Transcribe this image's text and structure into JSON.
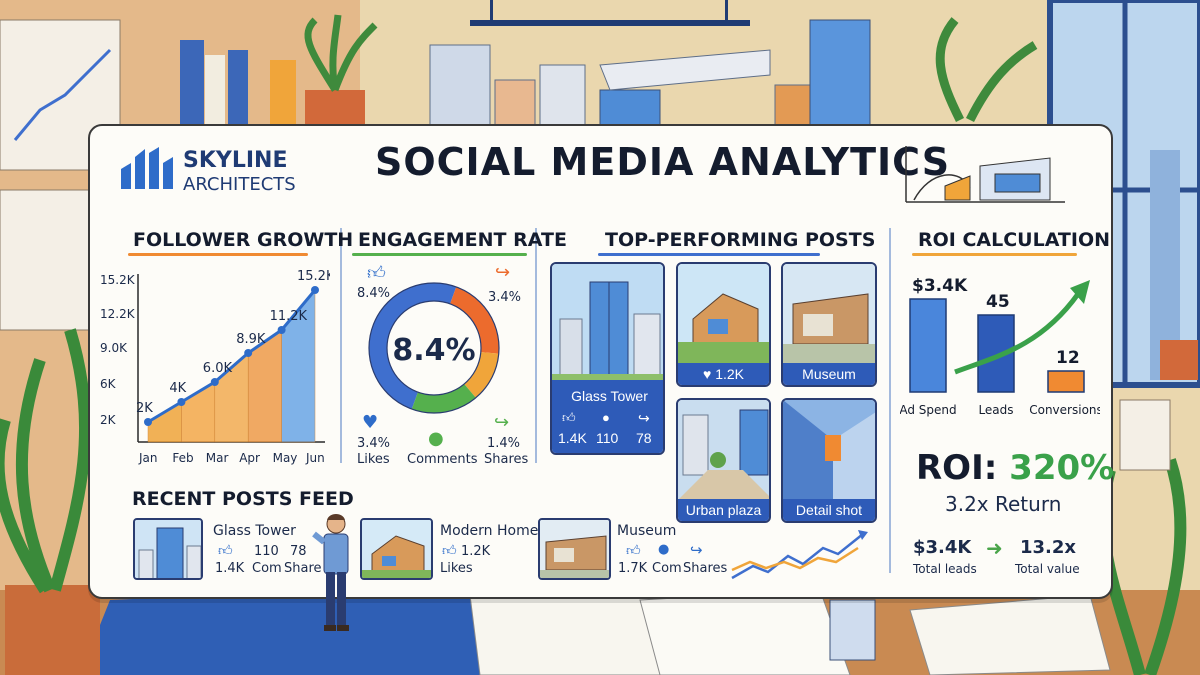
{
  "brand": {
    "line1": "SKYLINE",
    "line2": "ARCHITECTS"
  },
  "title": "SOCIAL MEDIA ANALYTICS",
  "follower_growth": {
    "title": "FOLLOWER GROWTH"
  },
  "engagement": {
    "title": "ENGAGEMENT RATE",
    "center_value": "8.4%",
    "likes_pct_top": "8.4%",
    "shares_pct_top": "3.4%",
    "likes_pct": "3.4%",
    "likes_label": "Likes",
    "comments_label": "Comments",
    "shares_pct": "1.4%",
    "shares_label": "Shares"
  },
  "top_posts": {
    "title": "TOP-PERFORMING POSTS",
    "cards": [
      {
        "caption": "Glass Tower",
        "likes": "1.4K",
        "comments": "110",
        "shares": "78"
      },
      {
        "caption": "1.2K"
      },
      {
        "caption": "Museum"
      },
      {
        "caption": "Urban plaza"
      },
      {
        "caption": "Detail shot"
      }
    ]
  },
  "roi": {
    "title": "ROI CALCULATION",
    "headline": "ROI: 320%",
    "return_text": "3.2x Return",
    "total_leads_value": "$3.4K",
    "total_leads_label": "Total leads",
    "total_value_value": "13.2x",
    "total_value_label": "Total value"
  },
  "recent_feed": {
    "title": "RECENT POSTS FEED",
    "items": [
      {
        "title": "Glass Tower",
        "likes": "1.4K",
        "comments": "110",
        "comments_label": "Com",
        "shares": "78",
        "shares_label": "Share"
      },
      {
        "title": "Modern Home",
        "likes": "1.2K",
        "likes_label": "Likes"
      },
      {
        "title": "Museum",
        "likes": "1.7K",
        "comments_label": "Com",
        "shares_label": "Shares"
      }
    ]
  },
  "chart_data": [
    {
      "type": "area",
      "title": "FOLLOWER GROWTH",
      "categories": [
        "Jan",
        "Feb",
        "Mar",
        "Apr",
        "May",
        "Jun"
      ],
      "values": [
        2,
        4,
        6,
        8.9,
        11.2,
        15.2
      ],
      "data_labels": [
        "2K",
        "4K",
        "6.0K",
        "8.9K",
        "11.2K",
        "15.2K"
      ],
      "y_ticks": [
        "2K",
        "6K",
        "9.0K",
        "12.2K",
        "15.2K"
      ],
      "ylim": [
        2,
        15.2
      ]
    },
    {
      "type": "pie",
      "title": "ENGAGEMENT RATE",
      "labels": [
        "Likes",
        "Comments",
        "Shares"
      ],
      "colors": [
        "#3f6fce",
        "#55b04d",
        "#f0a53a",
        "#ec6b2d"
      ]
    },
    {
      "type": "bar",
      "title": "ROI CALCULATION",
      "categories": [
        "Ad Spend",
        "Leads",
        "Conversions"
      ],
      "data_labels": [
        "$3.4K",
        "45",
        "12"
      ],
      "relative_heights": [
        0.93,
        0.77,
        0.21
      ],
      "colors": [
        "#4a86db",
        "#2e5bb8",
        "#f08a32"
      ]
    }
  ]
}
